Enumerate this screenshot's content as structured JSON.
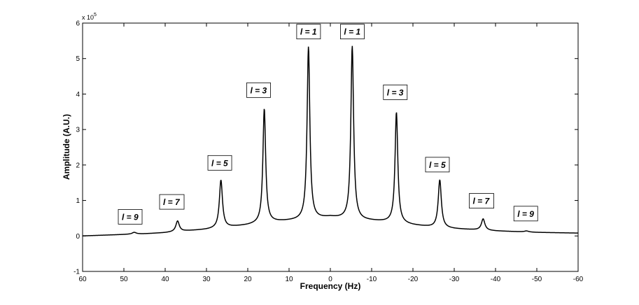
{
  "chart_data": {
    "type": "line",
    "title": "",
    "xlabel": "Frequency (Hz)",
    "ylabel": "Amplitude (A.U.)",
    "y_multiplier_label": "x 10",
    "y_multiplier_exponent": "5",
    "xlim": [
      60,
      -60
    ],
    "ylim": [
      -1,
      6
    ],
    "x_reversed": true,
    "grid": false,
    "x_ticks": [
      {
        "value": 60,
        "label": "60"
      },
      {
        "value": 50,
        "label": "50"
      },
      {
        "value": 40,
        "label": "40"
      },
      {
        "value": 30,
        "label": "30"
      },
      {
        "value": 20,
        "label": "20"
      },
      {
        "value": 10,
        "label": "10"
      },
      {
        "value": 0,
        "label": "0"
      },
      {
        "value": -10,
        "label": "-10"
      },
      {
        "value": -20,
        "label": "-20"
      },
      {
        "value": -30,
        "label": "-30"
      },
      {
        "value": -40,
        "label": "-40"
      },
      {
        "value": -50,
        "label": "-50"
      },
      {
        "value": -60,
        "label": "-60"
      }
    ],
    "y_ticks": [
      {
        "value": -1,
        "label": "-1"
      },
      {
        "value": 0,
        "label": "0"
      },
      {
        "value": 1,
        "label": "1"
      },
      {
        "value": 2,
        "label": "2"
      },
      {
        "value": 3,
        "label": "3"
      },
      {
        "value": 4,
        "label": "4"
      },
      {
        "value": 5,
        "label": "5"
      },
      {
        "value": 6,
        "label": "6"
      }
    ],
    "baseline": [
      [
        60,
        0.0
      ],
      [
        55,
        0.02
      ],
      [
        50,
        0.04
      ],
      [
        45,
        0.06
      ],
      [
        40,
        0.09
      ],
      [
        35,
        0.14
      ],
      [
        30,
        0.18
      ],
      [
        25,
        0.24
      ],
      [
        20,
        0.3
      ],
      [
        15,
        0.38
      ],
      [
        10,
        0.42
      ],
      [
        5,
        0.45
      ],
      [
        0,
        0.52
      ],
      [
        -5,
        0.45
      ],
      [
        -10,
        0.42
      ],
      [
        -15,
        0.38
      ],
      [
        -20,
        0.3
      ],
      [
        -25,
        0.24
      ],
      [
        -30,
        0.2
      ],
      [
        -35,
        0.17
      ],
      [
        -40,
        0.14
      ],
      [
        -45,
        0.12
      ],
      [
        -50,
        0.1
      ],
      [
        -55,
        0.09
      ],
      [
        -60,
        0.08
      ]
    ],
    "peaks": [
      {
        "x": 47.5,
        "height": 0.05,
        "width": 0.6
      },
      {
        "x": 37,
        "height": 0.3,
        "width": 0.5
      },
      {
        "x": 26.5,
        "height": 1.35,
        "width": 0.45
      },
      {
        "x": 16,
        "height": 3.22,
        "width": 0.4
      },
      {
        "x": 5.3,
        "height": 4.88,
        "width": 0.4
      },
      {
        "x": -5.3,
        "height": 4.9,
        "width": 0.4
      },
      {
        "x": -16,
        "height": 3.12,
        "width": 0.4
      },
      {
        "x": -26.5,
        "height": 1.35,
        "width": 0.45
      },
      {
        "x": -37,
        "height": 0.32,
        "width": 0.5
      },
      {
        "x": -47.5,
        "height": 0.03,
        "width": 0.6
      }
    ],
    "annotations": [
      {
        "text": "l = 9",
        "x": 48.5,
        "y": 0.53
      },
      {
        "text": "l = 7",
        "x": 38.5,
        "y": 0.95
      },
      {
        "text": "l = 5",
        "x": 26.8,
        "y": 2.05
      },
      {
        "text": "l = 3",
        "x": 17.4,
        "y": 4.1
      },
      {
        "text": "l = 1",
        "x": 5.3,
        "y": 5.75
      },
      {
        "text": "l = 1",
        "x": -5.3,
        "y": 5.75
      },
      {
        "text": "l = 3",
        "x": -15.7,
        "y": 4.04
      },
      {
        "text": "l = 5",
        "x": -25.9,
        "y": 2.0
      },
      {
        "text": "l = 7",
        "x": -36.5,
        "y": 0.98
      },
      {
        "text": "l = 9",
        "x": -47.3,
        "y": 0.62
      }
    ]
  }
}
